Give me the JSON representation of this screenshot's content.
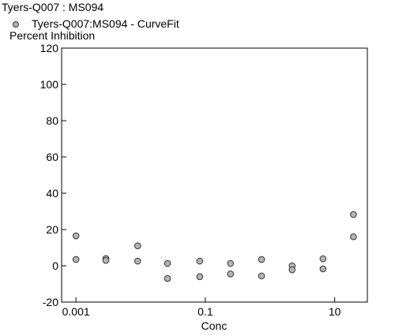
{
  "chart_data": {
    "type": "scatter",
    "title": "Tyers-Q007  :  MS094",
    "y_label": "Percent Inhibition",
    "x_label": "Conc",
    "x_scale": "log",
    "series": [
      {
        "name": "Tyers-Q007:MS094 - CurveFit",
        "color": "#b4b4b4",
        "x": [
          0.001,
          0.001,
          0.0029,
          0.0029,
          0.009,
          0.009,
          0.026,
          0.026,
          0.082,
          0.082,
          0.245,
          0.245,
          0.74,
          0.74,
          2.2,
          2.2,
          6.6,
          6.6,
          19.5,
          19.5
        ],
        "values": [
          16.5,
          3.5,
          4,
          3,
          11,
          2.6,
          1.3,
          -7,
          2.6,
          -6,
          1.3,
          -4.5,
          3.5,
          -5.6,
          0,
          -2.2,
          3.9,
          -1.7,
          28.3,
          16
        ]
      }
    ],
    "xlim": [
      0.0006,
      32
    ],
    "xticks": [
      0.001,
      0.1,
      10
    ],
    "ylim": [
      -20,
      120
    ],
    "yticks": [
      -20,
      0,
      20,
      40,
      60,
      80,
      100,
      120
    ]
  }
}
